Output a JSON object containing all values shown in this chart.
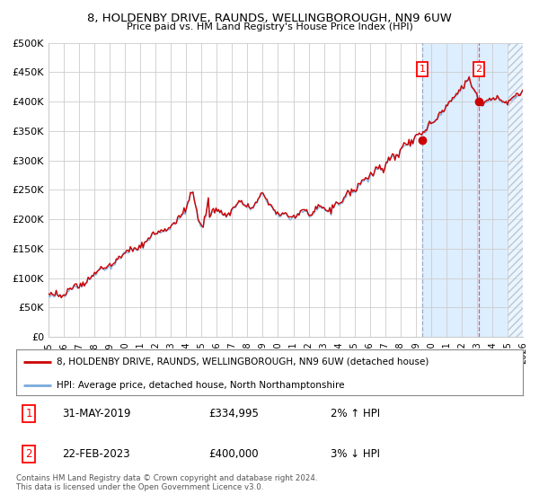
{
  "title1": "8, HOLDENBY DRIVE, RAUNDS, WELLINGBOROUGH, NN9 6UW",
  "title2": "Price paid vs. HM Land Registry's House Price Index (HPI)",
  "legend_line1": "8, HOLDENBY DRIVE, RAUNDS, WELLINGBOROUGH, NN9 6UW (detached house)",
  "legend_line2": "HPI: Average price, detached house, North Northamptonshire",
  "annotation1_label": "1",
  "annotation1_date": "31-MAY-2019",
  "annotation1_price": "£334,995",
  "annotation1_hpi": "2% ↑ HPI",
  "annotation2_label": "2",
  "annotation2_date": "22-FEB-2023",
  "annotation2_price": "£400,000",
  "annotation2_hpi": "3% ↓ HPI",
  "footer": "Contains HM Land Registry data © Crown copyright and database right 2024.\nThis data is licensed under the Open Government Licence v3.0.",
  "hpi_color": "#7aaadd",
  "price_color": "#cc0000",
  "marker_color": "#cc0000",
  "point1_x": 2019.42,
  "point1_y": 334995,
  "point2_x": 2023.13,
  "point2_y": 400000,
  "xmin": 1995,
  "xmax": 2026,
  "ymin": 0,
  "ymax": 500000,
  "yticks": [
    0,
    50000,
    100000,
    150000,
    200000,
    250000,
    300000,
    350000,
    400000,
    450000,
    500000
  ],
  "background_color": "#ffffff",
  "grid_color": "#cccccc",
  "shaded_region_color": "#ddeeff",
  "hatch_region_start": 2025.0
}
